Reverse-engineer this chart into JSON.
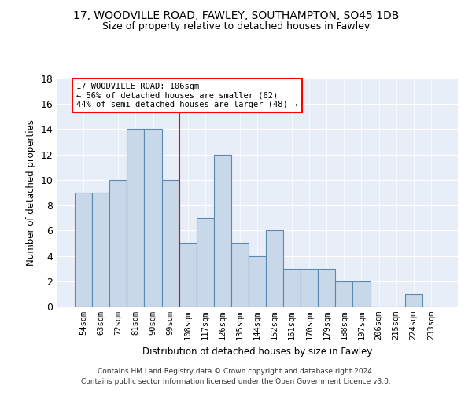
{
  "title1": "17, WOODVILLE ROAD, FAWLEY, SOUTHAMPTON, SO45 1DB",
  "title2": "Size of property relative to detached houses in Fawley",
  "xlabel": "Distribution of detached houses by size in Fawley",
  "ylabel": "Number of detached properties",
  "bins": [
    "54sqm",
    "63sqm",
    "72sqm",
    "81sqm",
    "90sqm",
    "99sqm",
    "108sqm",
    "117sqm",
    "126sqm",
    "135sqm",
    "144sqm",
    "152sqm",
    "161sqm",
    "170sqm",
    "179sqm",
    "188sqm",
    "197sqm",
    "206sqm",
    "215sqm",
    "224sqm",
    "233sqm"
  ],
  "values": [
    9,
    9,
    10,
    14,
    14,
    10,
    5,
    7,
    12,
    5,
    4,
    6,
    3,
    3,
    3,
    2,
    2,
    0,
    0,
    1,
    0
  ],
  "bar_color": "#c8d8e8",
  "bar_edge_color": "#5a8ab0",
  "vline_x_index": 5.5,
  "annotation_text": "17 WOODVILLE ROAD: 106sqm\n← 56% of detached houses are smaller (62)\n44% of semi-detached houses are larger (48) →",
  "annotation_box_color": "white",
  "annotation_box_edge": "red",
  "vline_color": "red",
  "ylim": [
    0,
    18
  ],
  "yticks": [
    0,
    2,
    4,
    6,
    8,
    10,
    12,
    14,
    16,
    18
  ],
  "bg_color": "#e8eef8",
  "footer1": "Contains HM Land Registry data © Crown copyright and database right 2024.",
  "footer2": "Contains public sector information licensed under the Open Government Licence v3.0."
}
